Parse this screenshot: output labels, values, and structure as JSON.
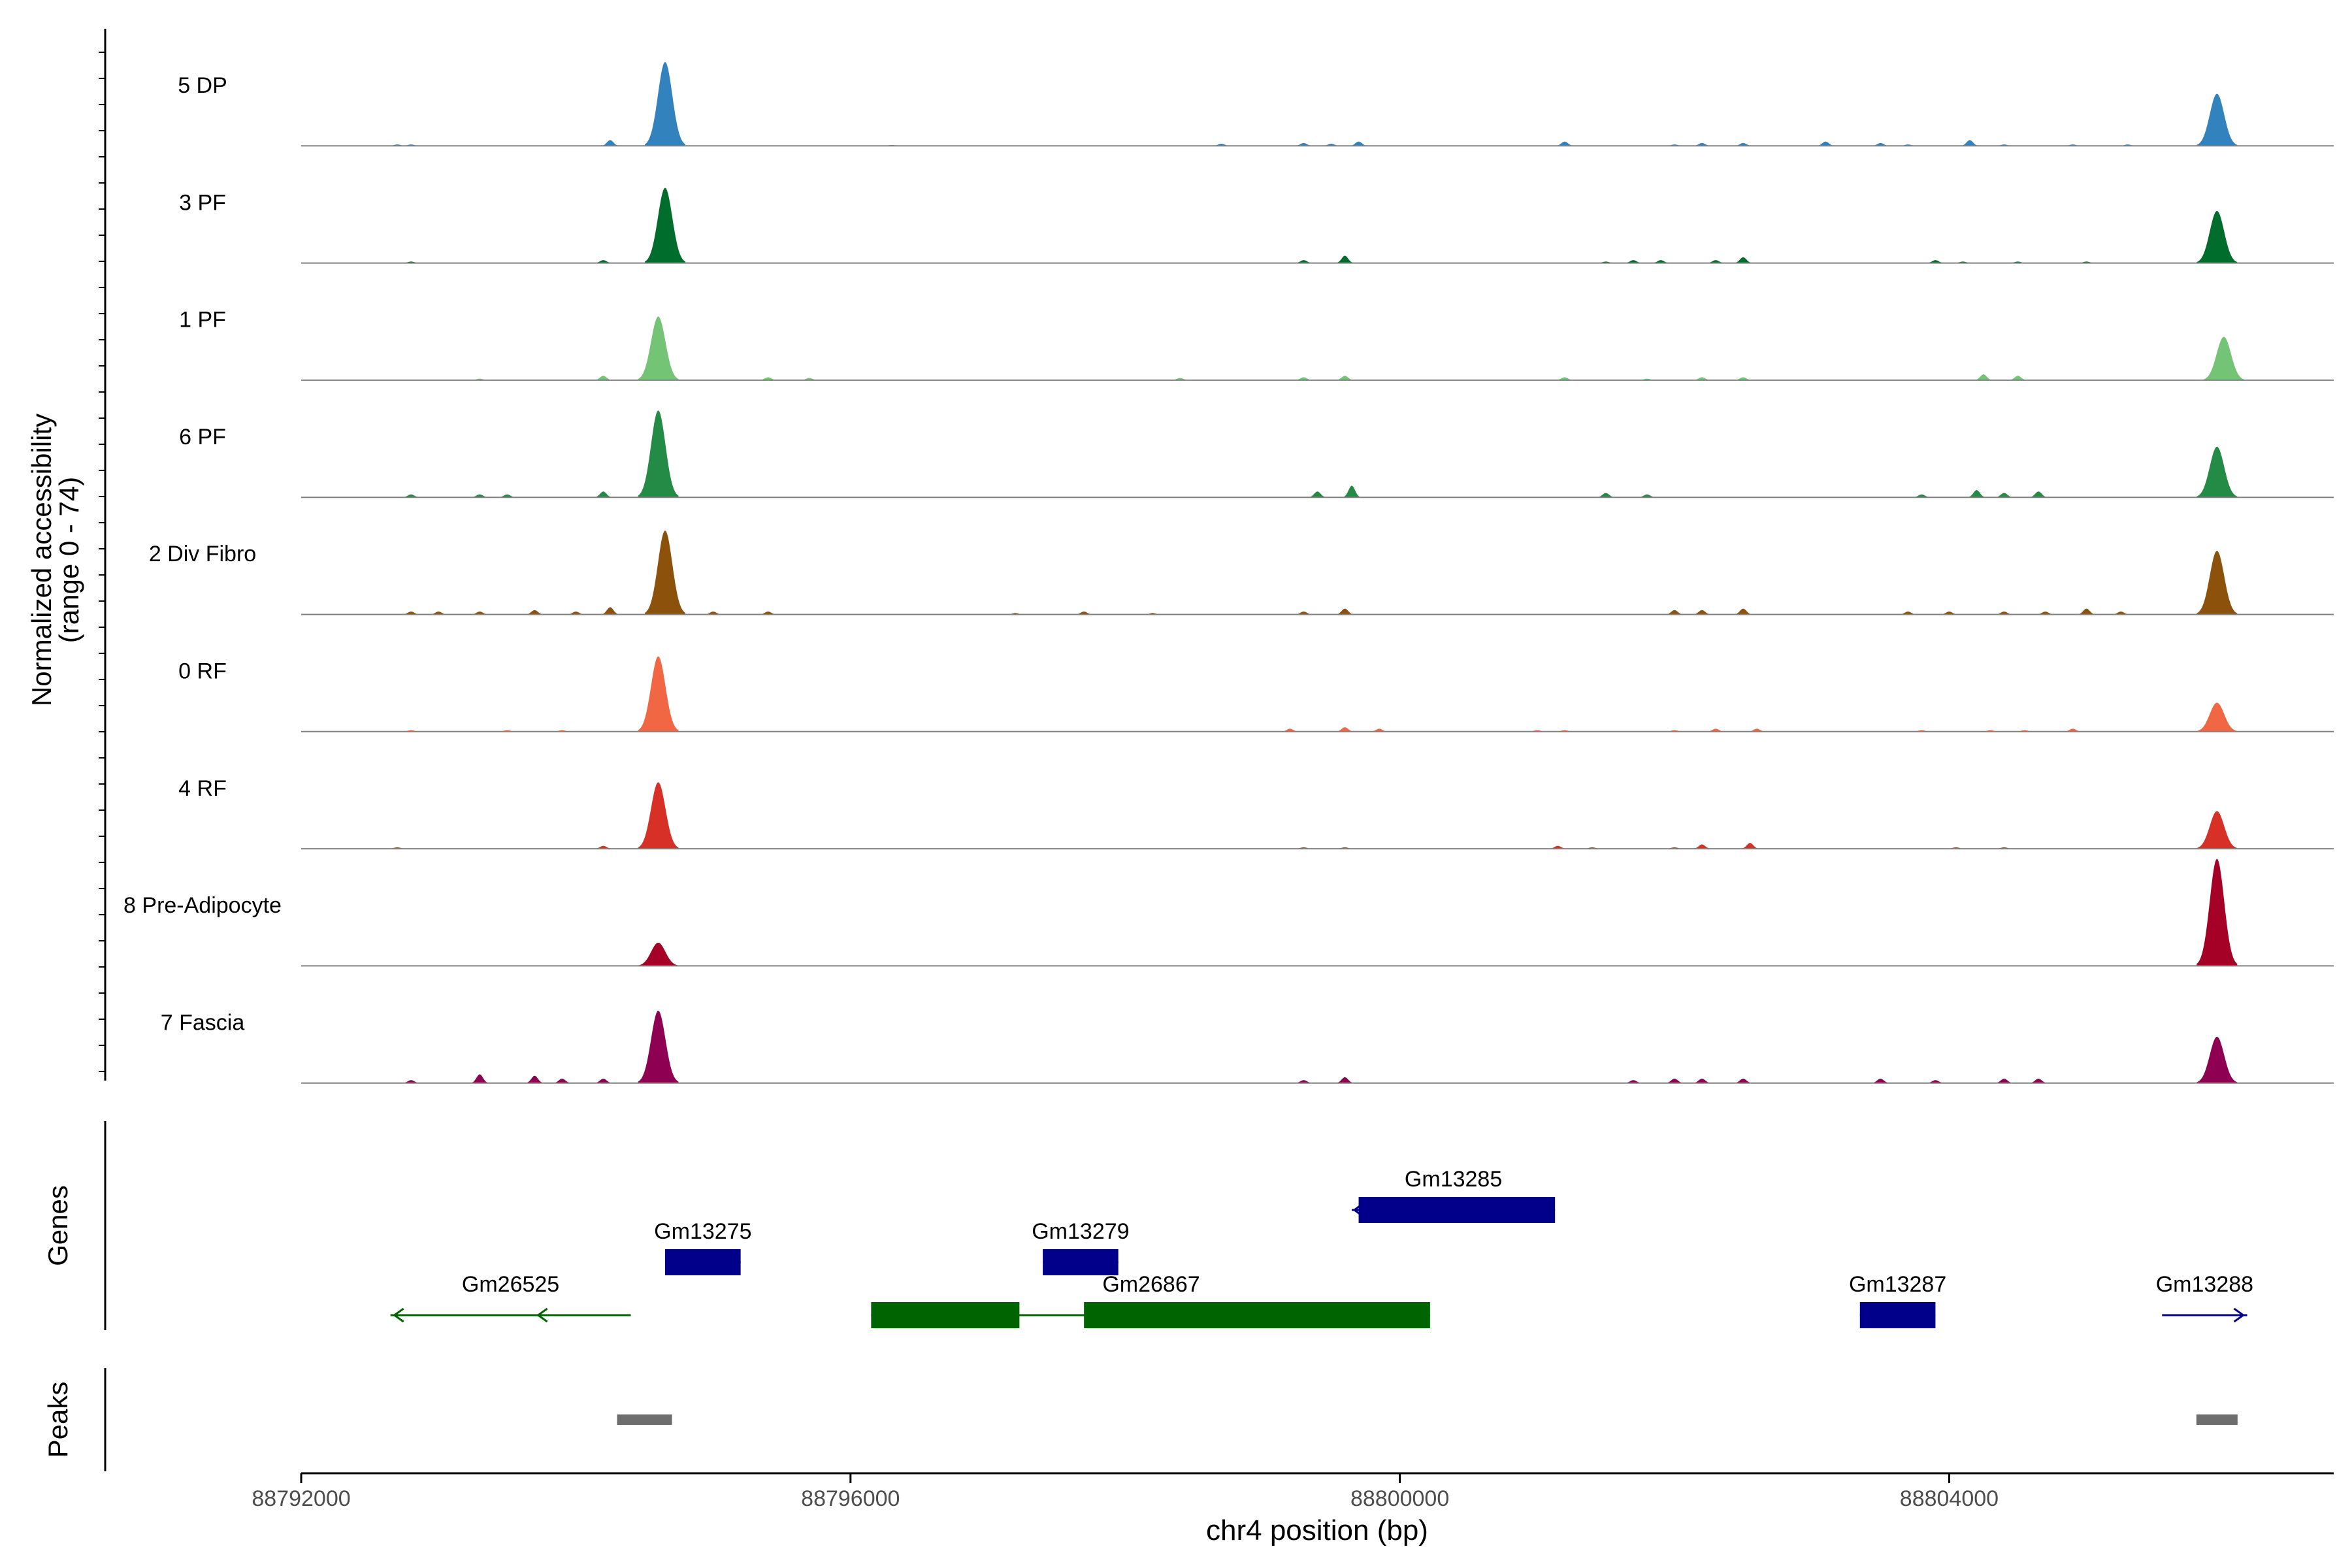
{
  "chart_data": {
    "type": "area",
    "chromosome": "chr4",
    "xlabel": "chr4 position (bp)",
    "xlim": [
      88792000,
      88806800
    ],
    "xticks": [
      88792000,
      88796000,
      88800000,
      88804000
    ],
    "xtick_labels": [
      "88792000",
      "88796000",
      "88800000",
      "88804000"
    ],
    "ylabel_line1": "Normalized accessibility",
    "ylabel_line2": "(range 0 - 74)",
    "ylim": [
      0,
      74
    ],
    "panel_labels": {
      "genes": "Genes",
      "peaks": "Peaks"
    },
    "tracks": [
      {
        "name": "5 DP",
        "color": "#3182BD",
        "peaks": [
          [
            88794650,
            58
          ],
          [
            88805950,
            36
          ],
          [
            88794250,
            4
          ],
          [
            88792700,
            1
          ],
          [
            88792800,
            1
          ],
          [
            88796300,
            0.6
          ],
          [
            88798700,
            1.5
          ],
          [
            88799300,
            2
          ],
          [
            88799500,
            1.5
          ],
          [
            88799700,
            3
          ],
          [
            88801200,
            3
          ],
          [
            88802000,
            1
          ],
          [
            88802200,
            2
          ],
          [
            88802500,
            2
          ],
          [
            88803100,
            3
          ],
          [
            88803500,
            2
          ],
          [
            88803700,
            1
          ],
          [
            88804150,
            4
          ],
          [
            88804400,
            1
          ],
          [
            88804900,
            1
          ],
          [
            88805300,
            1
          ]
        ]
      },
      {
        "name": "3 PF",
        "color": "#006D2C",
        "peaks": [
          [
            88794650,
            52
          ],
          [
            88805950,
            36
          ],
          [
            88794200,
            2
          ],
          [
            88792800,
            1
          ],
          [
            88799300,
            2
          ],
          [
            88799600,
            5
          ],
          [
            88801500,
            1
          ],
          [
            88801700,
            2
          ],
          [
            88801900,
            2
          ],
          [
            88802300,
            2
          ],
          [
            88802500,
            4
          ],
          [
            88803900,
            2
          ],
          [
            88804100,
            1
          ],
          [
            88804500,
            1
          ],
          [
            88805000,
            1
          ]
        ]
      },
      {
        "name": "1 PF",
        "color": "#74C476",
        "peaks": [
          [
            88794600,
            44
          ],
          [
            88806000,
            30
          ],
          [
            88793300,
            1
          ],
          [
            88794200,
            3
          ],
          [
            88795400,
            2
          ],
          [
            88795700,
            1.5
          ],
          [
            88798400,
            1.5
          ],
          [
            88799300,
            2
          ],
          [
            88799600,
            3
          ],
          [
            88801200,
            2
          ],
          [
            88801800,
            1
          ],
          [
            88802200,
            2
          ],
          [
            88802500,
            2
          ],
          [
            88804250,
            4
          ],
          [
            88804500,
            3
          ]
        ]
      },
      {
        "name": "6 PF",
        "color": "#238B45",
        "peaks": [
          [
            88794600,
            60
          ],
          [
            88805950,
            35
          ],
          [
            88792800,
            2
          ],
          [
            88793300,
            2
          ],
          [
            88793500,
            2
          ],
          [
            88794200,
            4
          ],
          [
            88799400,
            4
          ],
          [
            88799650,
            8
          ],
          [
            88801500,
            3
          ],
          [
            88801800,
            2
          ],
          [
            88803800,
            2
          ],
          [
            88804200,
            5
          ],
          [
            88804400,
            3
          ],
          [
            88804650,
            4
          ]
        ]
      },
      {
        "name": "2 Div Fibro",
        "color": "#8C510A",
        "peaks": [
          [
            88794650,
            58
          ],
          [
            88805950,
            44
          ],
          [
            88792800,
            2
          ],
          [
            88793000,
            2
          ],
          [
            88793300,
            2
          ],
          [
            88793700,
            3
          ],
          [
            88794000,
            2
          ],
          [
            88794250,
            5
          ],
          [
            88795000,
            2
          ],
          [
            88795400,
            2
          ],
          [
            88797200,
            1
          ],
          [
            88797700,
            2
          ],
          [
            88798200,
            1
          ],
          [
            88799300,
            2
          ],
          [
            88799600,
            4
          ],
          [
            88802000,
            3
          ],
          [
            88802200,
            3
          ],
          [
            88802500,
            4
          ],
          [
            88803700,
            2
          ],
          [
            88804000,
            2
          ],
          [
            88804400,
            2
          ],
          [
            88804700,
            2
          ],
          [
            88805000,
            4
          ],
          [
            88805250,
            2
          ]
        ]
      },
      {
        "name": "0 RF",
        "color": "#F16744",
        "peaks": [
          [
            88794600,
            52
          ],
          [
            88805950,
            20
          ],
          [
            88792800,
            1
          ],
          [
            88793500,
            1
          ],
          [
            88793900,
            1
          ],
          [
            88799200,
            2
          ],
          [
            88799600,
            3
          ],
          [
            88799850,
            2
          ],
          [
            88801000,
            1
          ],
          [
            88801200,
            1
          ],
          [
            88802000,
            1
          ],
          [
            88802300,
            2
          ],
          [
            88802600,
            2
          ],
          [
            88803800,
            1
          ],
          [
            88804300,
            1
          ],
          [
            88804550,
            1
          ],
          [
            88804900,
            2
          ]
        ]
      },
      {
        "name": "4 RF",
        "color": "#D73027",
        "peaks": [
          [
            88794600,
            46
          ],
          [
            88805950,
            26
          ],
          [
            88792700,
            1
          ],
          [
            88794200,
            2
          ],
          [
            88799300,
            1
          ],
          [
            88799600,
            1
          ],
          [
            88801150,
            2
          ],
          [
            88801400,
            1
          ],
          [
            88802000,
            1
          ],
          [
            88802200,
            3
          ],
          [
            88802550,
            4
          ],
          [
            88804050,
            1
          ],
          [
            88804400,
            1
          ]
        ]
      },
      {
        "name": "8 Pre-Adipocyte",
        "color": "#A50026",
        "peaks": [
          [
            88794600,
            16
          ],
          [
            88805950,
            74
          ]
        ]
      },
      {
        "name": "7 Fascia",
        "color": "#8E0152",
        "peaks": [
          [
            88794600,
            50
          ],
          [
            88805950,
            32
          ],
          [
            88792800,
            2
          ],
          [
            88793300,
            6
          ],
          [
            88793700,
            5
          ],
          [
            88793900,
            3
          ],
          [
            88794200,
            3
          ],
          [
            88799300,
            2
          ],
          [
            88799600,
            4
          ],
          [
            88801700,
            2
          ],
          [
            88802000,
            3
          ],
          [
            88802200,
            3
          ],
          [
            88802500,
            3
          ],
          [
            88803500,
            3
          ],
          [
            88803900,
            2
          ],
          [
            88804400,
            3
          ],
          [
            88804650,
            3
          ]
        ]
      }
    ],
    "genes": [
      {
        "name": "Gm26525",
        "strand": "-",
        "row": 1,
        "color": "#006400",
        "start": 88792650,
        "end": 88794400,
        "exons": []
      },
      {
        "name": "Gm13275",
        "strand": "+",
        "row": 2,
        "color": "#00008B",
        "start": 88794650,
        "end": 88795200,
        "exons": [
          [
            88794650,
            88795200
          ]
        ]
      },
      {
        "name": "Gm13279",
        "strand": "+",
        "row": 2,
        "color": "#00008B",
        "start": 88797400,
        "end": 88797950,
        "exons": [
          [
            88797400,
            88797950
          ]
        ]
      },
      {
        "name": "Gm26867",
        "strand": "-",
        "row": 1,
        "color": "#006400",
        "start": 88796150,
        "end": 88800220,
        "exons": [
          [
            88796150,
            88797230
          ],
          [
            88797700,
            88800220
          ]
        ]
      },
      {
        "name": "Gm13285",
        "strand": "-",
        "row": 3,
        "color": "#00008B",
        "start": 88799650,
        "end": 88801130,
        "exons": [
          [
            88799700,
            88801130
          ]
        ]
      },
      {
        "name": "Gm13287",
        "strand": "+",
        "row": 1,
        "color": "#00008B",
        "start": 88803350,
        "end": 88803900,
        "exons": [
          [
            88803350,
            88803900
          ]
        ]
      },
      {
        "name": "Gm13288",
        "strand": "+",
        "row": 1,
        "color": "#00008B",
        "start": 88805550,
        "end": 88806170,
        "exons": []
      }
    ],
    "peak_regions": [
      [
        88794300,
        88794700
      ],
      [
        88805800,
        88806100
      ]
    ]
  }
}
